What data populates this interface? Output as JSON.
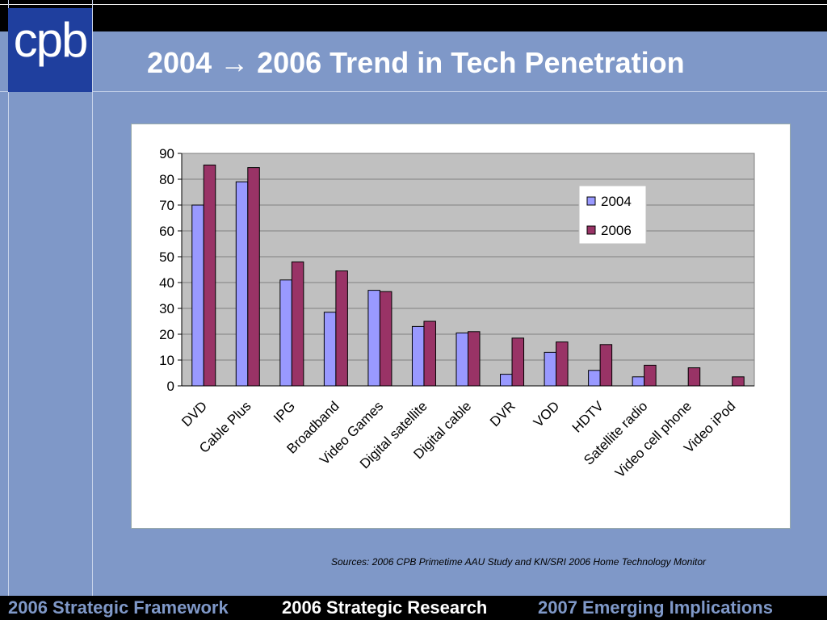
{
  "header": {
    "logo_text": "cpb",
    "title": "2004 → 2006 Trend in Tech Penetration"
  },
  "chart_data": {
    "type": "bar",
    "title": "",
    "xlabel": "",
    "ylabel": "",
    "ylim": [
      0,
      90
    ],
    "yticks": [
      0,
      10,
      20,
      30,
      40,
      50,
      60,
      70,
      80,
      90
    ],
    "grid": true,
    "legend": "top-right",
    "categories": [
      "DVD",
      "Cable Plus",
      "IPG",
      "Broadband",
      "Video Games",
      "Digital satellite",
      "Digital cable",
      "DVR",
      "VOD",
      "HDTV",
      "Satellite radio",
      "Video cell phone",
      "Video iPod"
    ],
    "series": [
      {
        "name": "2004",
        "color": "#9999ff",
        "values": [
          70,
          79,
          41,
          28.5,
          37,
          23,
          20.5,
          4.5,
          13,
          6,
          3.5,
          0,
          0
        ]
      },
      {
        "name": "2006",
        "color": "#993366",
        "values": [
          85.5,
          84.5,
          48,
          44.5,
          36.5,
          25,
          21,
          18.5,
          17,
          16,
          8,
          7,
          3.5
        ]
      }
    ]
  },
  "source_note": "Sources: 2006 CPB Primetime AAU Study and KN/SRI 2006 Home Technology Monitor",
  "footer": {
    "items": [
      "2006 Strategic Framework",
      "2006 Strategic Research",
      "2007 Emerging Implications"
    ]
  }
}
